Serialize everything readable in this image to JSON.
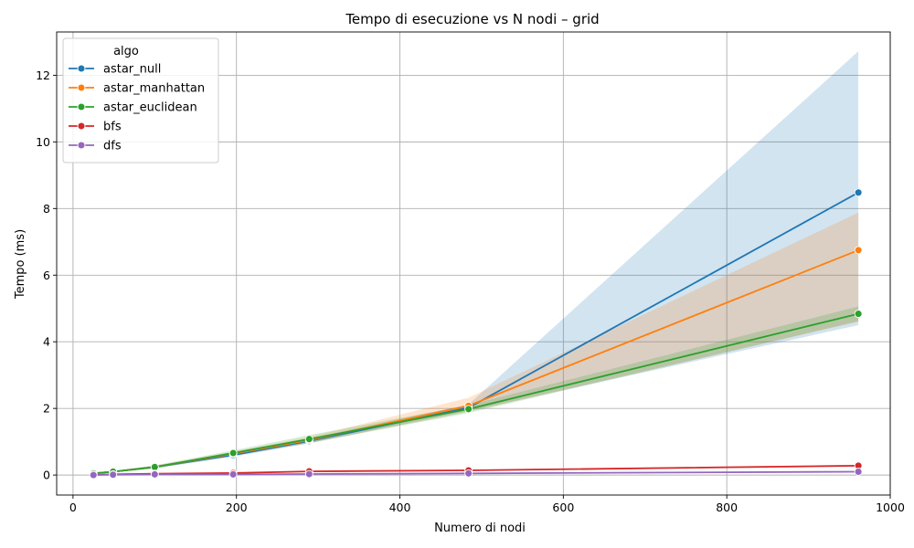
{
  "chart_data": {
    "type": "line",
    "title": "Tempo di esecuzione vs N nodi – grid",
    "xlabel": "Numero di nodi",
    "ylabel": "Tempo (ms)",
    "xlim": [
      -20,
      1000
    ],
    "ylim": [
      -0.6,
      13.3
    ],
    "xticks": [
      0,
      200,
      400,
      600,
      800,
      1000
    ],
    "yticks": [
      0,
      2,
      4,
      6,
      8,
      10,
      12
    ],
    "grid": true,
    "legend": {
      "title": "algo",
      "placement": "top-left"
    },
    "x": [
      25,
      49,
      100,
      196,
      289,
      484,
      961
    ],
    "series": [
      {
        "name": "astar_null",
        "color": "#1f77b4",
        "values": [
          0.05,
          0.1,
          0.24,
          0.6,
          1.02,
          2.02,
          8.48
        ],
        "ci_low": [
          0.04,
          0.08,
          0.2,
          0.55,
          0.95,
          1.92,
          4.5
        ],
        "ci_high": [
          0.07,
          0.12,
          0.28,
          0.66,
          1.1,
          2.12,
          12.72
        ]
      },
      {
        "name": "astar_manhattan",
        "color": "#ff7f0e",
        "values": [
          0.05,
          0.1,
          0.24,
          0.64,
          1.05,
          2.08,
          6.75
        ],
        "ci_low": [
          0.04,
          0.08,
          0.21,
          0.58,
          0.96,
          1.9,
          4.6
        ],
        "ci_high": [
          0.07,
          0.12,
          0.28,
          0.7,
          1.14,
          2.32,
          7.88
        ]
      },
      {
        "name": "astar_euclidean",
        "color": "#2ca02c",
        "values": [
          0.05,
          0.1,
          0.24,
          0.66,
          1.08,
          1.98,
          4.84
        ],
        "ci_low": [
          0.04,
          0.08,
          0.2,
          0.58,
          0.96,
          1.86,
          4.62
        ],
        "ci_high": [
          0.07,
          0.13,
          0.29,
          0.74,
          1.2,
          2.1,
          5.06
        ]
      },
      {
        "name": "bfs",
        "color": "#d62728",
        "values": [
          0.01,
          0.02,
          0.04,
          0.06,
          0.11,
          0.14,
          0.28
        ],
        "ci_low": [
          0.0,
          0.01,
          0.03,
          0.05,
          0.09,
          0.12,
          0.25
        ],
        "ci_high": [
          0.02,
          0.03,
          0.05,
          0.07,
          0.13,
          0.16,
          0.31
        ]
      },
      {
        "name": "dfs",
        "color": "#9467bd",
        "values": [
          0.0,
          0.01,
          0.02,
          0.02,
          0.03,
          0.05,
          0.1
        ],
        "ci_low": [
          0.0,
          0.0,
          0.01,
          0.01,
          0.02,
          0.04,
          0.08
        ],
        "ci_high": [
          0.01,
          0.02,
          0.03,
          0.03,
          0.04,
          0.06,
          0.12
        ]
      }
    ]
  }
}
